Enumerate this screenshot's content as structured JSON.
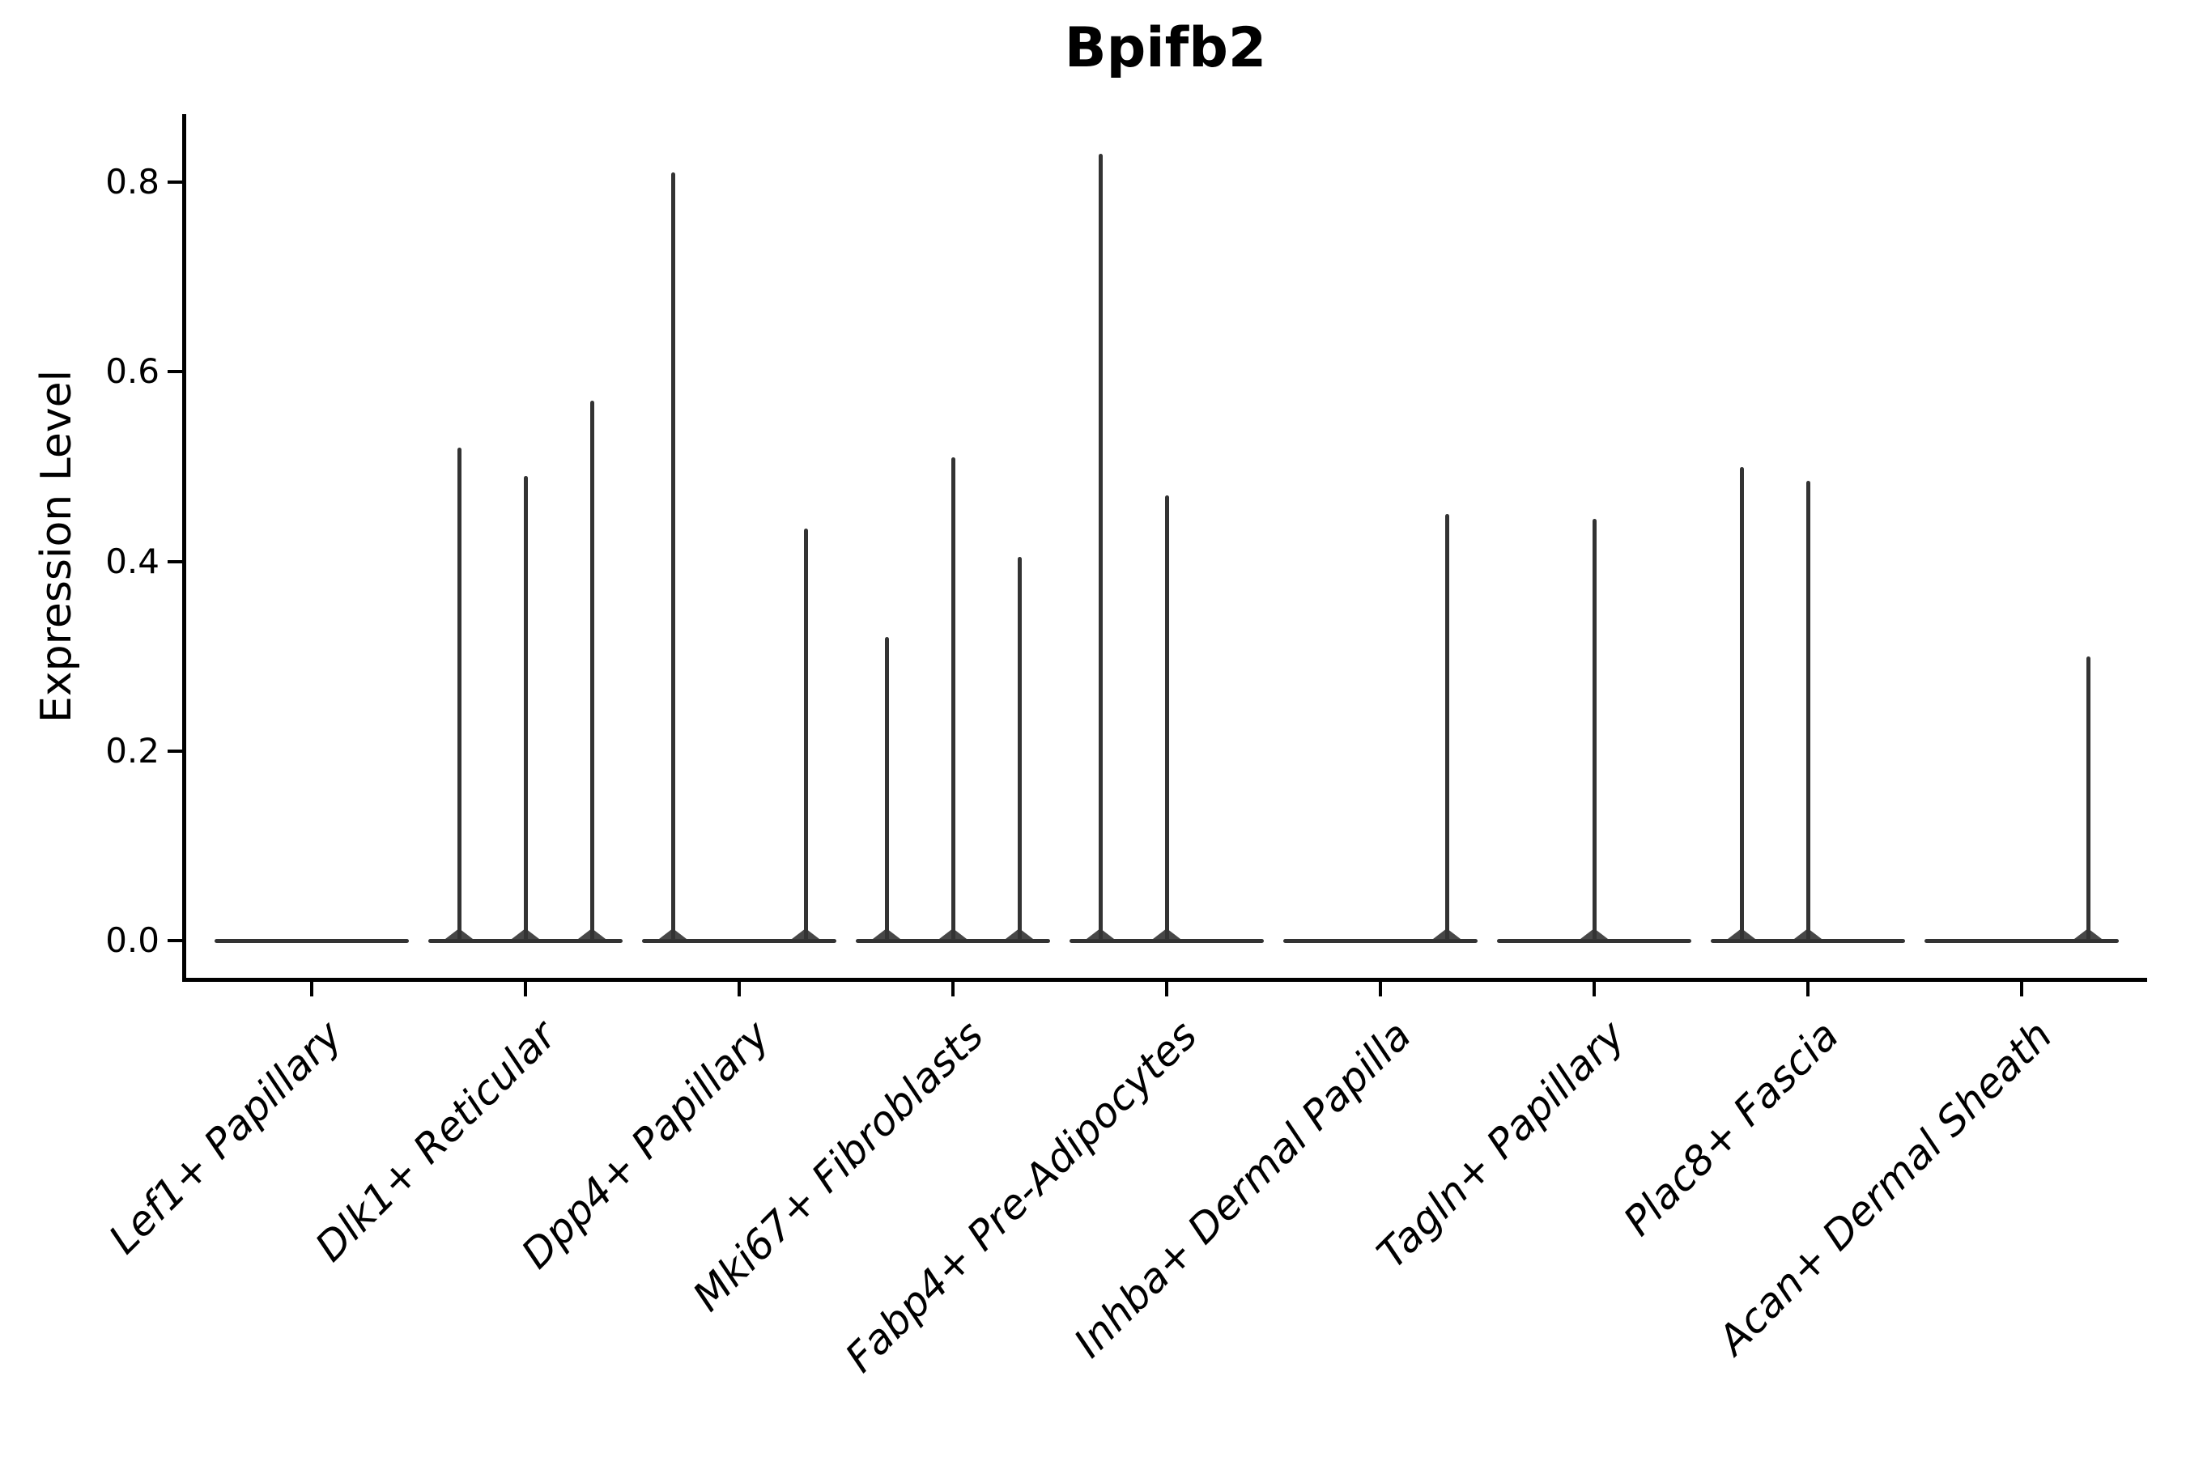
{
  "colors": {
    "background": "#ffffff",
    "violin": "#333333",
    "axis": "#000000",
    "text": "#000000"
  },
  "chart_data": {
    "type": "violin",
    "title": "Bpifb2",
    "xlabel": "",
    "ylabel": "Expression Level",
    "ylim": [
      0,
      0.87
    ],
    "grid": false,
    "legend": "none",
    "yticks": [
      0.0,
      0.2,
      0.4,
      0.6,
      0.8
    ],
    "ytick_labels": [
      "0.0",
      "0.2",
      "0.4",
      "0.6",
      "0.8"
    ],
    "categories": [
      "Lef1+ Papillary",
      "Dlk1+ Reticular",
      "Dpp4+ Papillary",
      "Mki67+ Fibroblasts",
      "Fabp4+ Pre-Adipocytes",
      "Inhba+ Dermal Papilla",
      "Tagln+ Papillary",
      "Plac8+ Fascia",
      "Acan+ Dermal Sheath"
    ],
    "violins_per_category": 3,
    "sub_positions": [
      "left",
      "center",
      "right"
    ],
    "description": "Each category holds three needle-thin violins collapsed onto a flat baseline at 0; value is the max expression spike height (0 = flat, no spike).",
    "spike_max_values": [
      [
        0,
        0,
        0
      ],
      [
        0.52,
        0.49,
        0.57
      ],
      [
        0.81,
        0,
        0.435
      ],
      [
        0.32,
        0.51,
        0.405
      ],
      [
        0.83,
        0.47,
        0
      ],
      [
        0,
        0,
        0.45
      ],
      [
        0,
        0.445,
        0
      ],
      [
        0.5,
        0.485,
        0
      ],
      [
        0,
        0,
        0.3
      ]
    ]
  }
}
